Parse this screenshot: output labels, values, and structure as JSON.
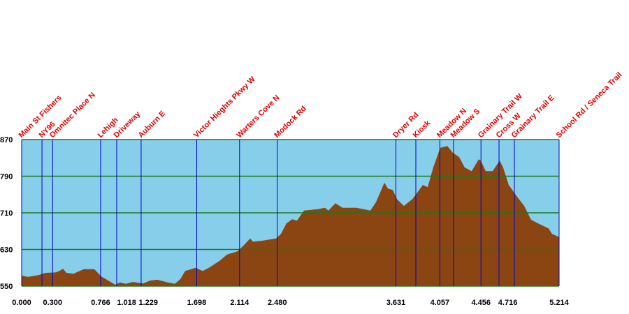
{
  "chart_data": {
    "type": "area",
    "colors": {
      "sky": "#87ceeb",
      "ground": "#8b4513",
      "grid": "#1a7a1a",
      "stop_line": "#0000cc",
      "stop_label": "#e00000"
    },
    "xlim": [
      0,
      5.214
    ],
    "ylim": [
      550,
      870
    ],
    "yticks": [
      550,
      630,
      710,
      790,
      870
    ],
    "xticks": [
      {
        "value": 0,
        "label": "0.000"
      },
      {
        "value": 0.3,
        "label": "0.300"
      },
      0.766,
      1.018,
      1.229,
      1.698,
      2.114,
      {
        "value": 2.48,
        "label": "2.480"
      },
      3.631,
      4.057,
      4.456,
      4.716,
      5.214
    ],
    "grid": true,
    "x": [
      0,
      0.061,
      0.163,
      0.231,
      0.332,
      0.366,
      0.4,
      0.434,
      0.502,
      0.603,
      0.705,
      0.773,
      0.841,
      0.908,
      0.956,
      1.01,
      1.078,
      1.18,
      1.247,
      1.315,
      1.417,
      1.485,
      1.539,
      1.586,
      1.688,
      1.756,
      1.824,
      1.925,
      1.993,
      2.095,
      2.163,
      2.217,
      2.244,
      2.332,
      2.468,
      2.515,
      2.569,
      2.624,
      2.671,
      2.739,
      2.875,
      2.942,
      2.976,
      3.044,
      3.112,
      3.247,
      3.383,
      3.437,
      3.519,
      3.553,
      3.6,
      3.641,
      3.708,
      3.79,
      3.844,
      3.892,
      3.939,
      3.993,
      4.061,
      4.129,
      4.183,
      4.244,
      4.298,
      4.366,
      4.434,
      4.454,
      4.502,
      4.569,
      4.637,
      4.671,
      4.725,
      4.807,
      4.875,
      4.942,
      5.01,
      5.112,
      5.146,
      5.214
    ],
    "values": [
      573,
      570,
      574,
      579,
      580,
      583,
      588,
      579,
      577,
      587,
      587,
      571,
      562,
      553,
      558,
      555,
      559,
      556,
      562,
      564,
      558,
      555,
      565,
      583,
      590,
      583,
      591,
      606,
      619,
      626,
      641,
      654,
      647,
      649,
      654,
      664,
      687,
      696,
      693,
      715,
      718,
      721,
      715,
      731,
      721,
      721,
      715,
      733,
      776,
      763,
      760,
      740,
      725,
      740,
      756,
      771,
      766,
      809,
      852,
      856,
      841,
      832,
      809,
      801,
      827,
      824,
      801,
      801,
      824,
      809,
      771,
      745,
      725,
      695,
      687,
      676,
      664,
      657
    ],
    "stops": [
      {
        "name": "Main St Fishers",
        "x": 0
      },
      {
        "name": "NY96",
        "x": 0.197
      },
      {
        "name": "Omnitec Place N",
        "x": 0.3
      },
      {
        "name": "Lehigh",
        "x": 0.766
      },
      {
        "name": "Driveway",
        "x": 0.922
      },
      {
        "name": "Auburn E",
        "x": 1.159
      },
      {
        "name": "Victor Hieghts Pkwy W",
        "x": 1.698
      },
      {
        "name": "Warters Cove N",
        "x": 2.114
      },
      {
        "name": "Modock Rd",
        "x": 2.48
      },
      {
        "name": "Dryer Rd",
        "x": 3.631
      },
      {
        "name": "Kiosk",
        "x": 3.824
      },
      {
        "name": "Meadow N",
        "x": 4.057
      },
      {
        "name": "Meadow S",
        "x": 4.19
      },
      {
        "name": "Grainary Trail W",
        "x": 4.456
      },
      {
        "name": "Cross W",
        "x": 4.631
      },
      {
        "name": "Grainary Trail E",
        "x": 4.78
      },
      {
        "name": "School Rd / Seneca Trail",
        "x": 5.214
      }
    ]
  }
}
